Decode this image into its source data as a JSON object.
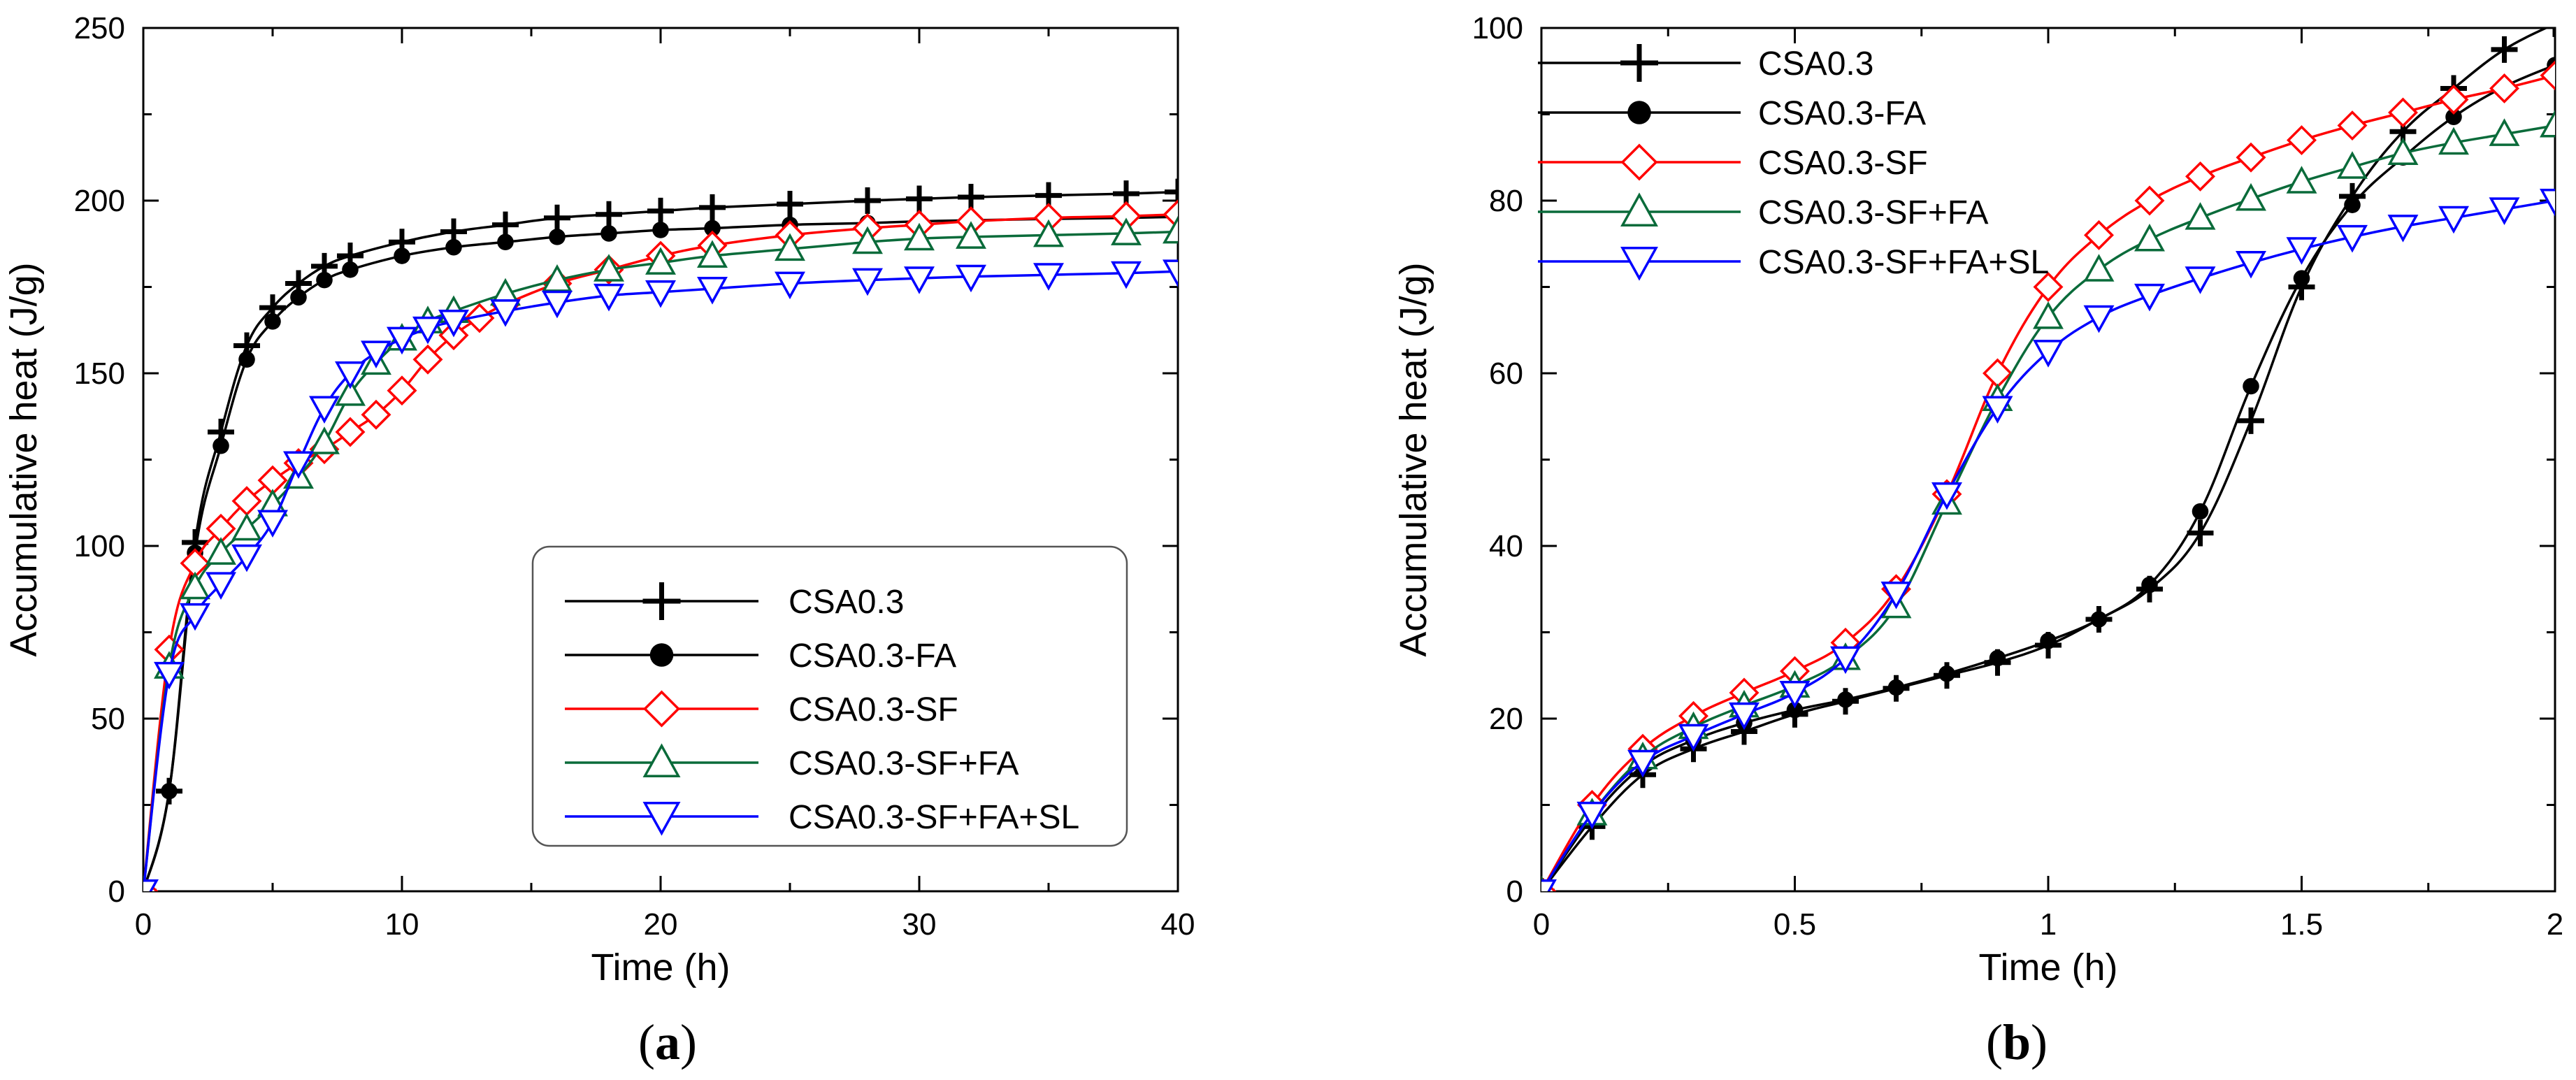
{
  "chart_data": [
    {
      "type": "line",
      "panel_label": "a",
      "title": "",
      "xlabel": "Time (h)",
      "ylabel": "Accumulative heat (J/g)",
      "xlim": [
        0,
        40
      ],
      "ylim": [
        0,
        250
      ],
      "xticks": [
        0,
        10,
        20,
        30,
        40
      ],
      "yticks": [
        0,
        50,
        100,
        150,
        200,
        250
      ],
      "grid": false,
      "legend_position": "bottom-right",
      "marker_every": 1,
      "series": [
        {
          "name": "CSA0.3",
          "color": "#000000",
          "marker": "plus",
          "x": [
            0,
            1,
            2,
            3,
            4,
            5,
            6,
            7,
            8,
            10,
            12,
            14,
            16,
            18,
            20,
            22,
            25,
            28,
            30,
            32,
            35,
            38,
            40
          ],
          "y": [
            0,
            29,
            101,
            133,
            158,
            169,
            176,
            181,
            184,
            188,
            191,
            193,
            195,
            196,
            197,
            198,
            199,
            200,
            200.5,
            201,
            201.5,
            202,
            202.5
          ]
        },
        {
          "name": "CSA0.3-FA",
          "color": "#000000",
          "marker": "circle",
          "x": [
            0,
            1,
            2,
            3,
            4,
            5,
            6,
            7,
            8,
            10,
            12,
            14,
            16,
            18,
            20,
            22,
            25,
            28,
            30,
            32,
            35,
            38,
            40
          ],
          "y": [
            0,
            29,
            98,
            129,
            154,
            165,
            172,
            177,
            180,
            184,
            186.5,
            188,
            189.5,
            190.5,
            191.5,
            192,
            193,
            193.5,
            194,
            194.3,
            194.7,
            195,
            195.3
          ]
        },
        {
          "name": "CSA0.3-SF",
          "color": "#ff0000",
          "marker": "diamond",
          "x": [
            0,
            1,
            2,
            3,
            4,
            5,
            6,
            7,
            8,
            9,
            10,
            11,
            12,
            13,
            14,
            16,
            18,
            20,
            22,
            25,
            28,
            30,
            32,
            35,
            38,
            40
          ],
          "y": [
            0,
            70,
            95,
            105,
            113,
            119,
            124,
            128,
            133,
            138,
            145,
            154,
            161,
            166,
            170,
            176,
            180,
            184,
            187,
            190,
            192,
            193,
            194,
            195,
            195.5,
            196
          ]
        },
        {
          "name": "CSA0.3-SF+FA",
          "color": "#0a6b3a",
          "marker": "triangle-up",
          "x": [
            0,
            1,
            2,
            3,
            4,
            5,
            6,
            7,
            8,
            9,
            10,
            11,
            12,
            14,
            16,
            18,
            20,
            22,
            25,
            28,
            30,
            32,
            35,
            38,
            40
          ],
          "y": [
            0,
            65,
            88,
            98,
            105,
            112,
            120,
            130,
            144,
            153,
            160,
            165,
            168,
            173,
            177,
            180,
            182,
            184,
            186,
            188,
            189,
            189.5,
            190,
            190.5,
            191
          ]
        },
        {
          "name": "CSA0.3-SF+FA+SL",
          "color": "#0000ff",
          "marker": "triangle-down",
          "x": [
            0,
            1,
            2,
            3,
            4,
            5,
            6,
            7,
            8,
            9,
            10,
            11,
            12,
            14,
            16,
            18,
            20,
            22,
            25,
            28,
            30,
            32,
            35,
            38,
            40
          ],
          "y": [
            0,
            63,
            80,
            89,
            97,
            107,
            124,
            140,
            150,
            156,
            160,
            163,
            165,
            168,
            170.5,
            172.5,
            173.5,
            174.5,
            176,
            177,
            177.5,
            178,
            178.5,
            179,
            179.5
          ]
        }
      ]
    },
    {
      "type": "line",
      "panel_label": "b",
      "title": "",
      "xlabel": "Time (h)",
      "ylabel": "Accumulative heat (J/g)",
      "xlim": [
        0,
        2
      ],
      "ylim": [
        0,
        100
      ],
      "xticks": [
        0,
        0.5,
        1,
        1.5,
        2
      ],
      "yticks": [
        0,
        20,
        40,
        60,
        80,
        100
      ],
      "grid": false,
      "legend_position": "top-left",
      "marker_every": 1,
      "series": [
        {
          "name": "CSA0.3",
          "color": "#000000",
          "marker": "plus",
          "x": [
            0,
            0.1,
            0.2,
            0.3,
            0.4,
            0.5,
            0.6,
            0.7,
            0.8,
            0.9,
            1.0,
            1.1,
            1.2,
            1.3,
            1.4,
            1.5,
            1.6,
            1.7,
            1.8,
            1.9,
            2.0
          ],
          "y": [
            0,
            7.5,
            13.5,
            16.5,
            18.5,
            20.5,
            22,
            23.5,
            25,
            26.5,
            28.5,
            31.5,
            35,
            41.5,
            54.5,
            70,
            80.5,
            88,
            93,
            97.5,
            100.5
          ]
        },
        {
          "name": "CSA0.3-FA",
          "color": "#000000",
          "marker": "circle",
          "x": [
            0,
            0.1,
            0.2,
            0.3,
            0.4,
            0.5,
            0.6,
            0.7,
            0.8,
            0.9,
            1.0,
            1.1,
            1.2,
            1.3,
            1.4,
            1.5,
            1.6,
            1.7,
            1.8,
            1.9,
            2.0
          ],
          "y": [
            0,
            8.5,
            14.5,
            17.5,
            19.5,
            21,
            22.2,
            23.6,
            25.2,
            27,
            29,
            31.5,
            35.5,
            44,
            58.5,
            71,
            79.5,
            85,
            89.7,
            93.2,
            95.7
          ]
        },
        {
          "name": "CSA0.3-SF",
          "color": "#ff0000",
          "marker": "diamond",
          "x": [
            0,
            0.1,
            0.2,
            0.3,
            0.4,
            0.5,
            0.6,
            0.7,
            0.8,
            0.9,
            1.0,
            1.1,
            1.2,
            1.3,
            1.4,
            1.5,
            1.6,
            1.7,
            1.8,
            1.9,
            2.0
          ],
          "y": [
            0,
            10,
            16.5,
            20.3,
            23,
            25.5,
            28.8,
            35,
            46,
            60,
            70,
            76,
            80,
            82.8,
            85,
            87,
            88.7,
            90.2,
            91.7,
            93,
            94.5
          ]
        },
        {
          "name": "CSA0.3-SF+FA",
          "color": "#0a6b3a",
          "marker": "triangle-up",
          "x": [
            0,
            0.1,
            0.2,
            0.3,
            0.4,
            0.5,
            0.6,
            0.7,
            0.8,
            0.9,
            1.0,
            1.1,
            1.2,
            1.3,
            1.4,
            1.5,
            1.6,
            1.7,
            1.8,
            1.9,
            2.0
          ],
          "y": [
            0,
            9,
            15.5,
            19,
            21.5,
            23.8,
            27,
            33,
            45,
            57,
            66.5,
            72,
            75.5,
            78,
            80.2,
            82.2,
            83.9,
            85.5,
            86.7,
            87.7,
            88.7
          ]
        },
        {
          "name": "CSA0.3-SF+FA+SL",
          "color": "#0000ff",
          "marker": "triangle-down",
          "x": [
            0,
            0.1,
            0.2,
            0.3,
            0.4,
            0.5,
            0.6,
            0.7,
            0.8,
            0.9,
            1.0,
            1.1,
            1.2,
            1.3,
            1.4,
            1.5,
            1.6,
            1.7,
            1.8,
            1.9,
            2.0
          ],
          "y": [
            0,
            9,
            15,
            18,
            20.5,
            23,
            27,
            34.5,
            46,
            56,
            62.5,
            66.5,
            69,
            71,
            72.8,
            74.4,
            75.8,
            77,
            78,
            79,
            80
          ]
        }
      ]
    }
  ],
  "captions": {
    "a": "a",
    "b": "b"
  }
}
